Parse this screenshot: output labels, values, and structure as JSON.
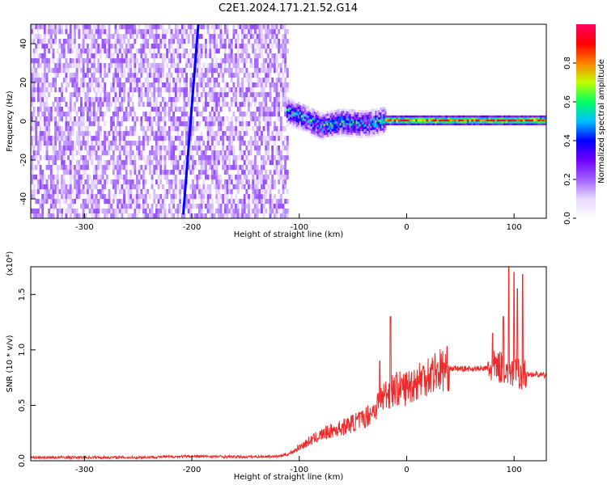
{
  "title": "C2E1.2024.171.21.52.G14",
  "colors": {
    "snr_line": "#ee2a2a",
    "cmap": [
      "#ffffff",
      "#e8d8ff",
      "#a060ff",
      "#7000ff",
      "#0000ff",
      "#00c0ff",
      "#00ff60",
      "#c0ff00",
      "#ff8000",
      "#ff0000",
      "#ff0060"
    ]
  },
  "chart_data": [
    {
      "type": "heatmap",
      "xlabel": "Height of straight line (km)",
      "ylabel": "Frequency (Hz)",
      "xlim": [
        -350,
        130
      ],
      "ylim": [
        -50,
        50
      ],
      "xticks": [
        -300,
        -200,
        -100,
        0,
        100
      ],
      "xtick_labels": [
        "-300",
        "-200",
        "-100",
        "0",
        "100"
      ],
      "yticks": [
        -40,
        -20,
        0,
        20,
        40
      ],
      "ytick_labels": [
        "-40",
        "-20",
        "0",
        "20",
        "40"
      ],
      "colorbar": {
        "label": "Normalized spectral amplitude",
        "range": [
          0,
          1
        ],
        "ticks": [
          0.0,
          0.2,
          0.4,
          0.6,
          0.8
        ],
        "tick_labels": [
          "0.0",
          "0.2",
          "0.4",
          "0.6",
          "0.8"
        ]
      },
      "regions": [
        {
          "x_range": [
            -350,
            -110
          ],
          "y_range": [
            -50,
            50
          ],
          "description": "broadband noise",
          "amplitude_range": [
            0.0,
            0.25
          ]
        },
        {
          "x_range": [
            -112,
            -20
          ],
          "center_hz": [
            [
              -112,
              5
            ],
            [
              -100,
              2
            ],
            [
              -80,
              -3
            ],
            [
              -60,
              -1
            ],
            [
              -40,
              -2
            ],
            [
              -20,
              0
            ]
          ],
          "width_hz": 8,
          "amplitude_range": [
            0.2,
            0.7
          ]
        },
        {
          "x_range": [
            -20,
            130
          ],
          "center_hz": 0,
          "width_hz": 2,
          "amplitude_range": [
            0.7,
            1.0
          ]
        }
      ],
      "diagonal_trace": {
        "from": [
          -208,
          -48
        ],
        "to": [
          -194,
          50
        ],
        "amplitude": 0.25
      }
    },
    {
      "type": "line",
      "xlabel": "Height of straight line (km)",
      "ylabel": "SNR (10 * v/v)",
      "scale_label": "(x10⁴)",
      "xlim": [
        -350,
        130
      ],
      "ylim": [
        0,
        17500
      ],
      "xticks": [
        -300,
        -200,
        -100,
        0,
        100
      ],
      "xtick_labels": [
        "-300",
        "-200",
        "-100",
        "0",
        "100"
      ],
      "yticks": [
        0,
        5000,
        10000,
        15000
      ],
      "ytick_labels": [
        "0.0",
        "0.5",
        "1.0",
        "1.5"
      ],
      "series": [
        {
          "color": "#ee2a2a",
          "x": [
            -350,
            -300,
            -250,
            -200,
            -150,
            -120,
            -110,
            -100,
            -90,
            -80,
            -70,
            -60,
            -50,
            -40,
            -30,
            -25,
            -20,
            -15,
            -10,
            -5,
            0,
            10,
            20,
            30,
            40,
            50,
            60,
            70,
            80,
            85,
            90,
            95,
            100,
            105,
            110,
            120,
            130
          ],
          "y": [
            300,
            300,
            300,
            400,
            350,
            400,
            600,
            1200,
            1800,
            2300,
            2700,
            3000,
            3400,
            3800,
            4600,
            5400,
            6000,
            6300,
            6500,
            6500,
            6600,
            7200,
            7800,
            8200,
            8300,
            8300,
            8300,
            8300,
            8400,
            8500,
            8400,
            8100,
            8000,
            7900,
            7800,
            7800,
            7700
          ],
          "spikes": [
            {
              "x": -15,
              "y": 13000
            },
            {
              "x": -25,
              "y": 9000
            },
            {
              "x": 80,
              "y": 11500
            },
            {
              "x": 90,
              "y": 13000
            },
            {
              "x": 95,
              "y": 17500
            },
            {
              "x": 100,
              "y": 17000
            },
            {
              "x": 103,
              "y": 15500
            },
            {
              "x": 108,
              "y": 16800
            }
          ]
        }
      ]
    }
  ]
}
